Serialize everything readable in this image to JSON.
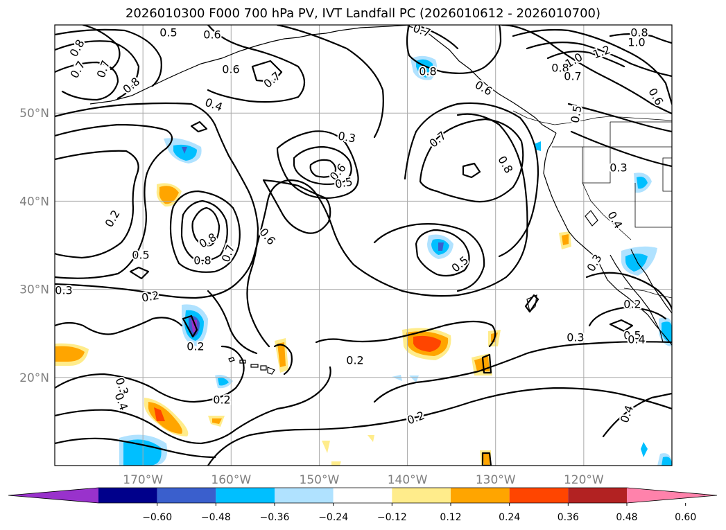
{
  "title": "2026010300 F000 700 hPa PV, IVT Landfall PC (2026010612 - 2026010700)",
  "map": {
    "lon_range": [
      -180,
      -110
    ],
    "lat_range": [
      10,
      60
    ],
    "lat_ticks": [
      {
        "value": 20,
        "label": "20°N"
      },
      {
        "value": 30,
        "label": "30°N"
      },
      {
        "value": 40,
        "label": "40°N"
      },
      {
        "value": 50,
        "label": "50°N"
      }
    ],
    "lon_ticks": [
      {
        "value": -170,
        "label": "170°W"
      },
      {
        "value": -160,
        "label": "160°W"
      },
      {
        "value": -150,
        "label": "150°W"
      },
      {
        "value": -140,
        "label": "140°W"
      },
      {
        "value": -130,
        "label": "130°W"
      },
      {
        "value": -120,
        "label": "120°W"
      }
    ],
    "gridlines": true
  },
  "colorbar": {
    "ticks": [
      "−0.60",
      "−0.48",
      "−0.36",
      "−0.24",
      "−0.12",
      "0.12",
      "0.24",
      "0.36",
      "0.48",
      "0.60"
    ],
    "colors": [
      "#9932cc",
      "#00008b",
      "#3a5fcd",
      "#00bfff",
      "#b0e2ff",
      "#ffffff",
      "#ffec8b",
      "#ffa500",
      "#ff4500",
      "#b22222",
      "#ff82ab"
    ]
  },
  "contour_labels": [
    "0.8",
    "0.7",
    "0.5",
    "0.6",
    "0.7",
    "0.6",
    "0.7",
    "0.8",
    "0.4",
    "0.7",
    "0.8",
    "0.6",
    "0.8",
    "1.0",
    "1.2",
    "1.0",
    "0.8",
    "0.7",
    "0.8",
    "0.6",
    "0.5",
    "0.3",
    "0.6",
    "0.5",
    "0.7",
    "0.8",
    "0.3",
    "0.2",
    "0.5",
    "0.8",
    "0.7",
    "0.6",
    "0.2",
    "0.4",
    "0.3",
    "0.5",
    "0.4",
    "0.3",
    "0.2",
    "0.2",
    "0.2",
    "0.3",
    "0.5",
    "0.4",
    "0.3",
    "0.4",
    "0.2",
    "0.2"
  ]
}
